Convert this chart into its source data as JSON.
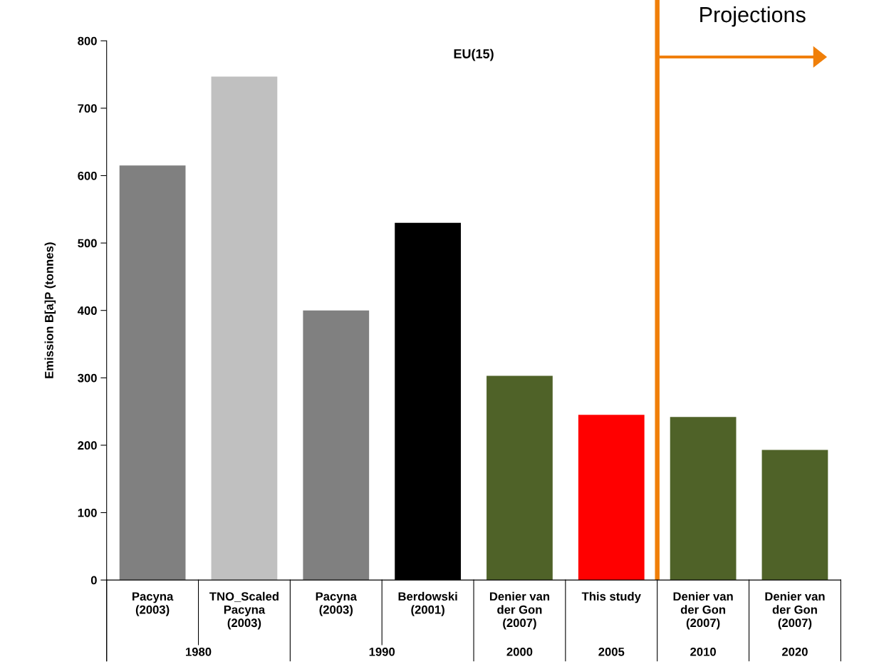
{
  "chart_data": {
    "type": "bar",
    "title": "EU(15)",
    "ylabel": "Emission B[a]P (tonnes)",
    "categories": [
      "Pacyna\n(2003)",
      "TNO_Scaled\nPacyna\n(2003)",
      "Pacyna\n(2003)",
      "Berdowski\n(2001)",
      "Denier van\nder Gon\n(2007)",
      "This study",
      "Denier van\nder Gon\n(2007)",
      "Denier van\nder Gon\n(2007)"
    ],
    "values": [
      615,
      747,
      400,
      530,
      303,
      245,
      242,
      193
    ],
    "colors": [
      "#808080",
      "#c0c0c0",
      "#808080",
      "#000000",
      "#4f6228",
      "#ff0000",
      "#4f6228",
      "#4f6228"
    ],
    "ylim": [
      0,
      800
    ],
    "yticks": [
      0,
      100,
      200,
      300,
      400,
      500,
      600,
      700,
      800
    ],
    "grid": false,
    "annotations": [
      "1980",
      "1990",
      "2000",
      "2005",
      "2010",
      "2020",
      "Projections"
    ]
  }
}
